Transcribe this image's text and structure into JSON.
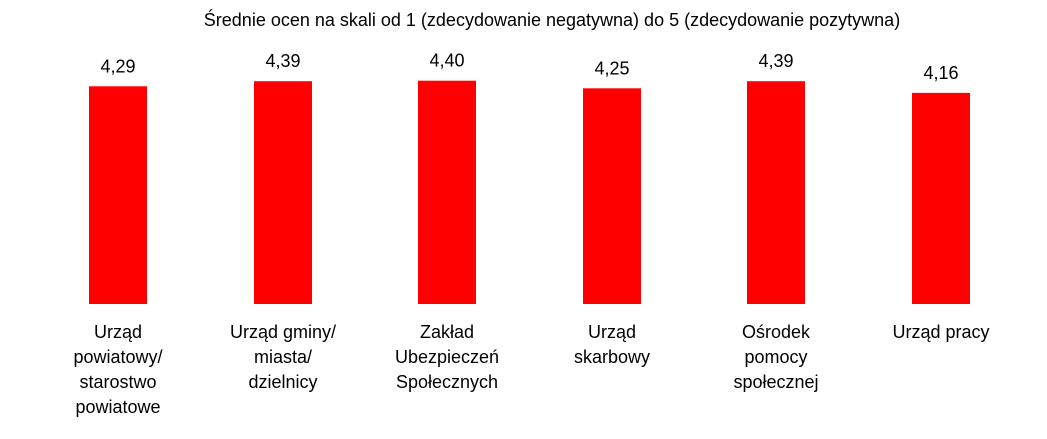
{
  "chart_data": {
    "type": "bar",
    "title": "Średnie ocen na skali od 1 (zdecydowanie negatywna) do 5 (zdecydowanie pozytywna)",
    "categories": [
      "Urząd powiatowy/ starostwo powiatowe",
      "Urząd gminy/ miasta/ dzielnicy",
      "Zakład Ubezpieczeń Społecznych",
      "Urząd skarbowy",
      "Ośrodek pomocy społecznej",
      "Urząd pracy"
    ],
    "category_lines": [
      [
        "Urząd",
        "powiatowy/",
        "starostwo",
        "powiatowe"
      ],
      [
        "Urząd gminy/",
        "miasta/",
        "dzielnicy"
      ],
      [
        "Zakład",
        "Ubezpieczeń",
        "Społecznych"
      ],
      [
        "Urząd",
        "skarbowy"
      ],
      [
        "Ośrodek",
        "pomocy",
        "społecznej"
      ],
      [
        "Urząd pracy"
      ]
    ],
    "values": [
      4.29,
      4.39,
      4.4,
      4.25,
      4.39,
      4.16
    ],
    "value_labels": [
      "4,29",
      "4,39",
      "4,40",
      "4,25",
      "4,39",
      "4,16"
    ],
    "ylim": [
      0,
      5
    ],
    "xlabel": "",
    "ylabel": "",
    "grid": false,
    "legend": "none",
    "bar_color": "#ff0000"
  }
}
